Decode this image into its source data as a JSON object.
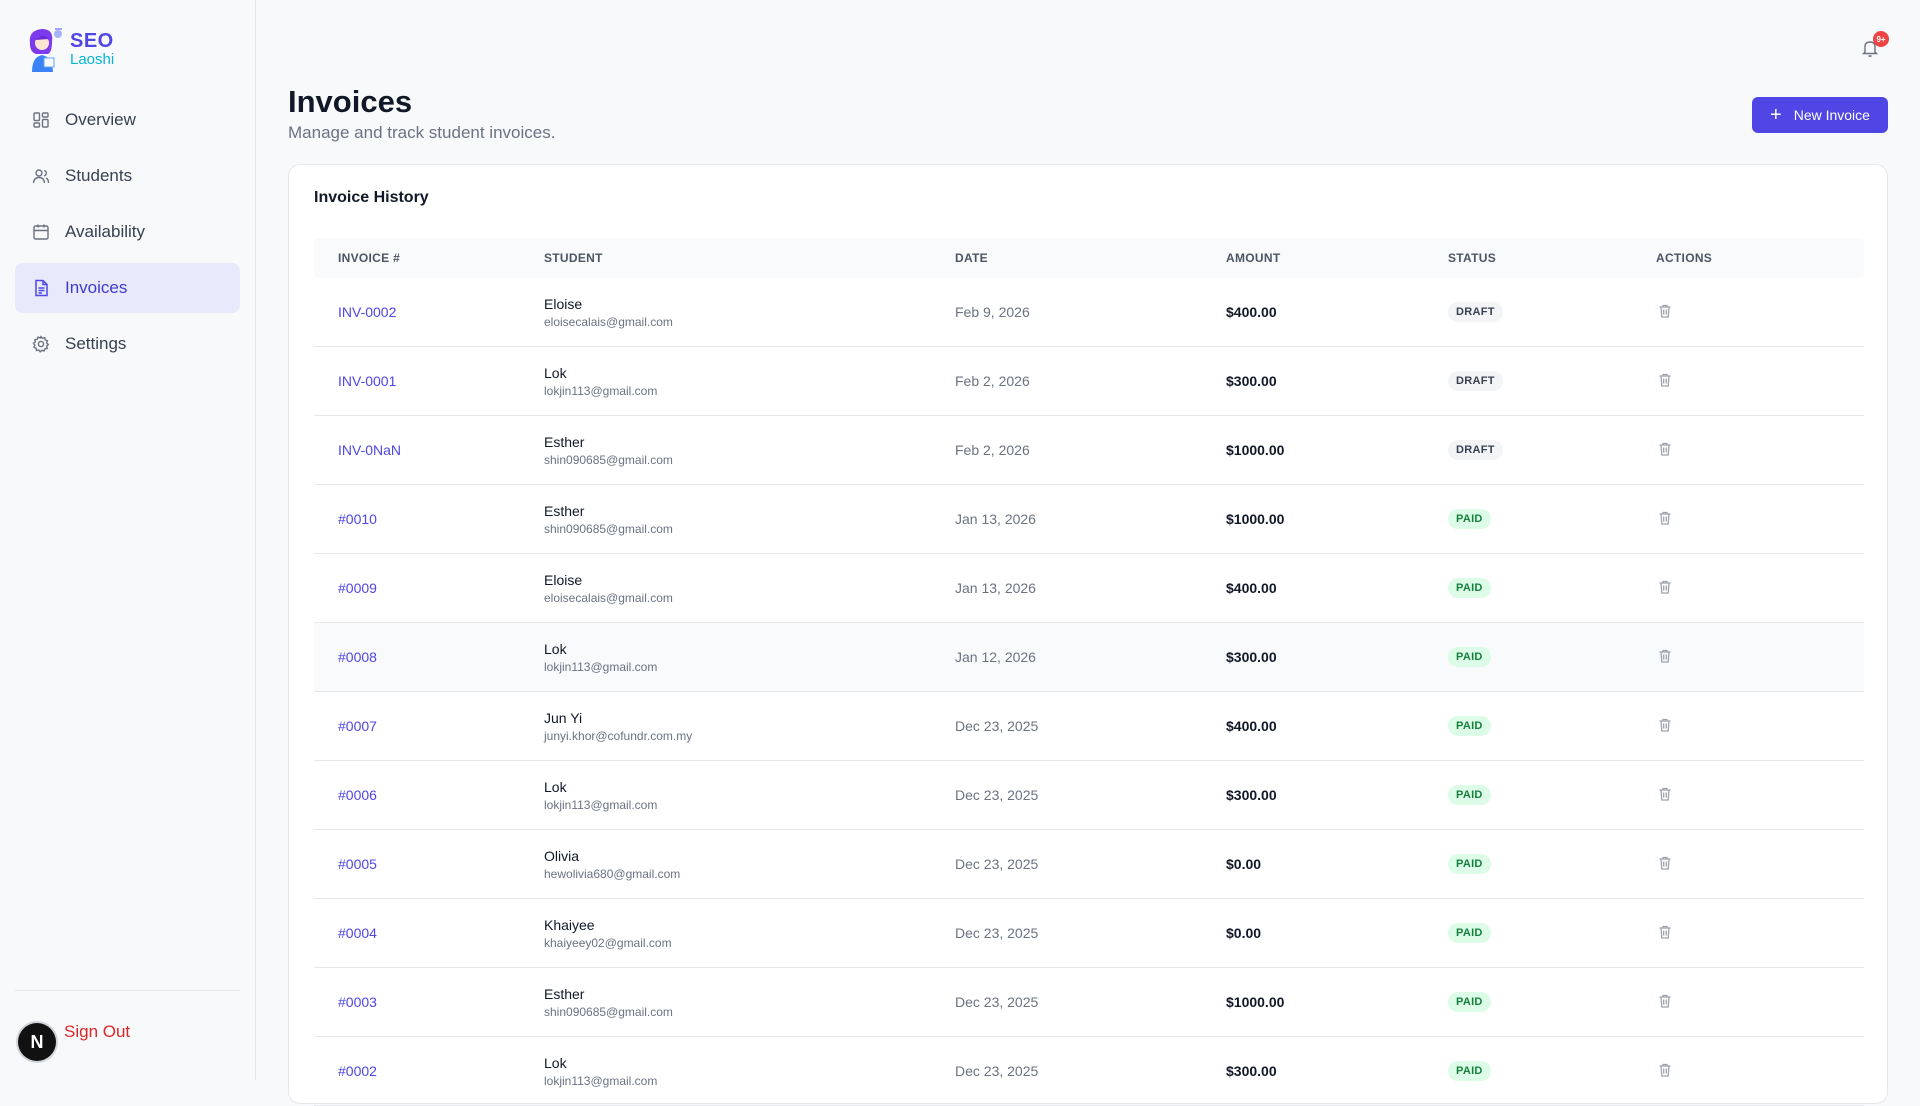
{
  "brand": {
    "name": "SEO",
    "sub": "Laoshi"
  },
  "sidebar": {
    "items": [
      {
        "label": "Overview",
        "icon": "grid-icon"
      },
      {
        "label": "Students",
        "icon": "users-icon"
      },
      {
        "label": "Availability",
        "icon": "calendar-icon"
      },
      {
        "label": "Invoices",
        "icon": "file-text-icon",
        "active": true
      },
      {
        "label": "Settings",
        "icon": "gear-icon"
      }
    ],
    "signout_label": "Sign Out",
    "avatar_initial": "N"
  },
  "header": {
    "notification_badge": "9+"
  },
  "page": {
    "title": "Invoices",
    "subtitle": "Manage and track student invoices.",
    "new_invoice_label": "New Invoice"
  },
  "card": {
    "title": "Invoice History"
  },
  "table": {
    "columns": [
      "INVOICE #",
      "STUDENT",
      "DATE",
      "AMOUNT",
      "STATUS",
      "ACTIONS"
    ],
    "rows": [
      {
        "invoice": "INV-0002",
        "name": "Eloise",
        "email": "eloisecalais@gmail.com",
        "date": "Feb 9, 2026",
        "amount": "$400.00",
        "status": "DRAFT"
      },
      {
        "invoice": "INV-0001",
        "name": "Lok",
        "email": "lokjin113@gmail.com",
        "date": "Feb 2, 2026",
        "amount": "$300.00",
        "status": "DRAFT"
      },
      {
        "invoice": "INV-0NaN",
        "name": "Esther",
        "email": "shin090685@gmail.com",
        "date": "Feb 2, 2026",
        "amount": "$1000.00",
        "status": "DRAFT"
      },
      {
        "invoice": "#0010",
        "name": "Esther",
        "email": "shin090685@gmail.com",
        "date": "Jan 13, 2026",
        "amount": "$1000.00",
        "status": "PAID"
      },
      {
        "invoice": "#0009",
        "name": "Eloise",
        "email": "eloisecalais@gmail.com",
        "date": "Jan 13, 2026",
        "amount": "$400.00",
        "status": "PAID"
      },
      {
        "invoice": "#0008",
        "name": "Lok",
        "email": "lokjin113@gmail.com",
        "date": "Jan 12, 2026",
        "amount": "$300.00",
        "status": "PAID"
      },
      {
        "invoice": "#0007",
        "name": "Jun Yi",
        "email": "junyi.khor@cofundr.com.my",
        "date": "Dec 23, 2025",
        "amount": "$400.00",
        "status": "PAID"
      },
      {
        "invoice": "#0006",
        "name": "Lok",
        "email": "lokjin113@gmail.com",
        "date": "Dec 23, 2025",
        "amount": "$300.00",
        "status": "PAID"
      },
      {
        "invoice": "#0005",
        "name": "Olivia",
        "email": "hewolivia680@gmail.com",
        "date": "Dec 23, 2025",
        "amount": "$0.00",
        "status": "PAID"
      },
      {
        "invoice": "#0004",
        "name": "Khaiyee",
        "email": "khaiyeey02@gmail.com",
        "date": "Dec 23, 2025",
        "amount": "$0.00",
        "status": "PAID"
      },
      {
        "invoice": "#0003",
        "name": "Esther",
        "email": "shin090685@gmail.com",
        "date": "Dec 23, 2025",
        "amount": "$1000.00",
        "status": "PAID"
      },
      {
        "invoice": "#0002",
        "name": "Lok",
        "email": "lokjin113@gmail.com",
        "date": "Dec 23, 2025",
        "amount": "$300.00",
        "status": "PAID"
      }
    ]
  },
  "colors": {
    "accent": "#4f46e5",
    "danger": "#dc2626",
    "paid_bg": "#dcfce7",
    "paid_fg": "#15803d"
  }
}
